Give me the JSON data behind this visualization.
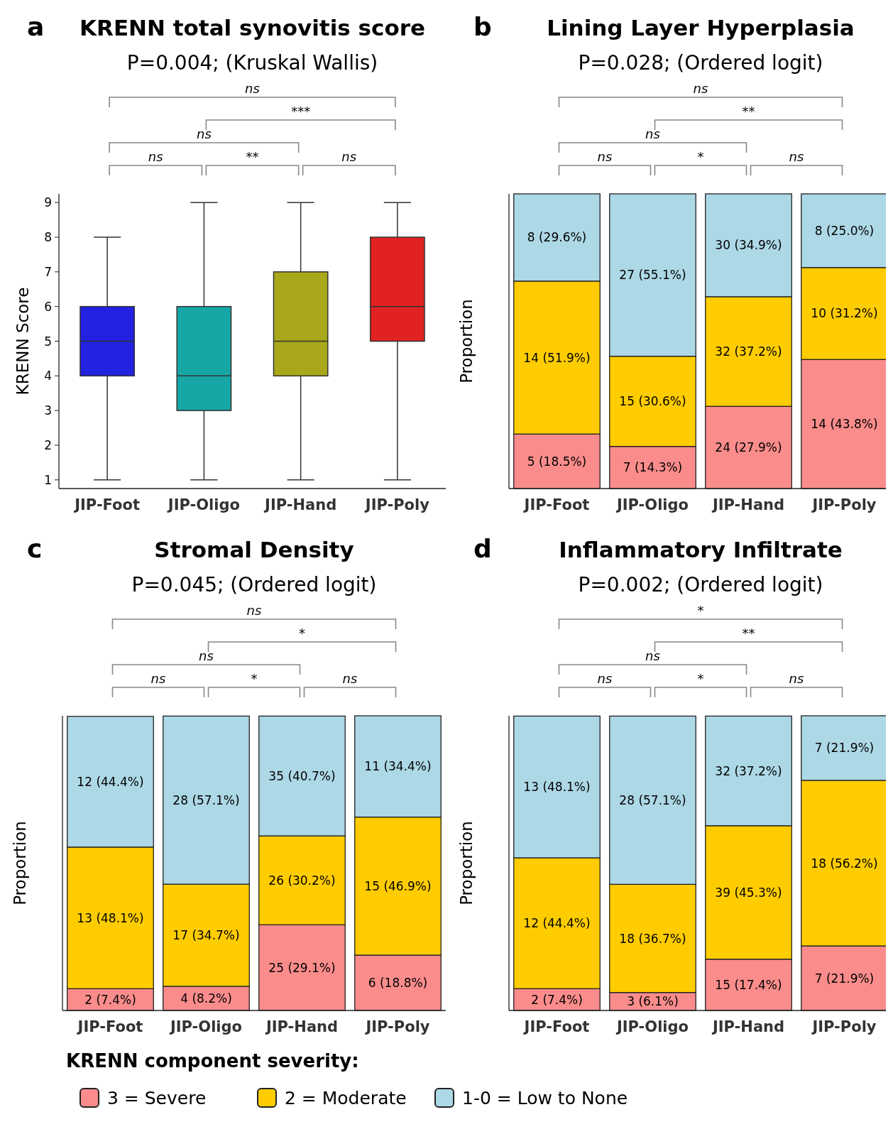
{
  "chart_data": [
    {
      "type": "box",
      "title": "KRENN total synovitis score",
      "subtitle": "P=0.004; (Kruskal Wallis)",
      "ylabel": "KRENN Score",
      "categories": [
        "JIP-Foot",
        "JIP-Oligo",
        "JIP-Hand",
        "JIP-Poly"
      ],
      "colors": [
        "#2222e0",
        "#17a6a6",
        "#a8a81a",
        "#e02222"
      ],
      "boxes": [
        {
          "low": 1,
          "q1": 4,
          "median": 5,
          "q3": 6,
          "high": 8
        },
        {
          "low": 1,
          "q1": 3,
          "median": 4,
          "q3": 6,
          "high": 9
        },
        {
          "low": 1,
          "q1": 4,
          "median": 5,
          "q3": 7,
          "high": 9
        },
        {
          "low": 1,
          "q1": 5,
          "median": 6,
          "q3": 8,
          "high": 9
        }
      ],
      "ylim": [
        0.75,
        9.25
      ],
      "yticks": [
        1,
        2,
        3,
        4,
        5,
        6,
        7,
        8,
        9
      ],
      "annotations": [
        "a",
        "ns",
        "***",
        "ns",
        "ns",
        "**",
        "ns"
      ]
    },
    {
      "type": "bar",
      "stacked": true,
      "title": "Lining Layer Hyperplasia",
      "subtitle": "P=0.028; (Ordered logit)",
      "ylabel": "Proportion",
      "categories": [
        "JIP-Foot",
        "JIP-Oligo",
        "JIP-Hand",
        "JIP-Poly"
      ],
      "ylim": [
        0,
        100
      ],
      "tick_labels": "x",
      "series": [
        {
          "color": "#fa8c8c",
          "values": [
            18.5,
            14.3,
            27.9,
            43.8
          ],
          "value_labels": [
            "5 (18.5%)",
            "7 (14.3%)",
            "24 (27.9%)",
            "14 (43.8%)"
          ]
        },
        {
          "color": "#ffcc00",
          "values": [
            51.9,
            30.6,
            37.2,
            31.2
          ],
          "value_labels": [
            "14 (51.9%)",
            "15 (30.6%)",
            "32 (37.2%)",
            "10 (31.2%)"
          ]
        },
        {
          "color": "#add8e6",
          "values": [
            29.6,
            55.1,
            34.9,
            25.0
          ],
          "value_labels": [
            "8 (29.6%)",
            "27 (55.1%)",
            "30 (34.9%)",
            "8 (25.0%)"
          ]
        }
      ],
      "annotations": [
        "b",
        "ns",
        "**",
        "ns",
        "ns",
        "*",
        "ns"
      ]
    },
    {
      "type": "bar",
      "stacked": true,
      "title": "Stromal Density",
      "subtitle": "P=0.045; (Ordered logit)",
      "ylabel": "Proportion",
      "categories": [
        "JIP-Foot",
        "JIP-Oligo",
        "JIP-Hand",
        "JIP-Poly"
      ],
      "ylim": [
        0,
        100.1
      ],
      "tick_labels": "x",
      "series": [
        {
          "color": "#fa8c8c",
          "values": [
            7.4,
            8.2,
            29.1,
            18.8
          ],
          "value_labels": [
            "2 (7.4%)",
            "4 (8.2%)",
            "25 (29.1%)",
            "6 (18.8%)"
          ]
        },
        {
          "color": "#ffcc00",
          "values": [
            48.1,
            34.7,
            30.2,
            46.9
          ],
          "value_labels": [
            "13 (48.1%)",
            "17 (34.7%)",
            "26 (30.2%)",
            "15 (46.9%)"
          ]
        },
        {
          "color": "#add8e6",
          "values": [
            44.4,
            57.1,
            40.7,
            34.4
          ],
          "value_labels": [
            "12 (44.4%)",
            "28 (57.1%)",
            "35 (40.7%)",
            "11 (34.4%)"
          ]
        }
      ],
      "annotations": [
        "c",
        "ns",
        "*",
        "ns",
        "ns",
        "*",
        "ns"
      ]
    },
    {
      "type": "bar",
      "stacked": true,
      "title": "Inflammatory Infiltrate",
      "subtitle": "P=0.002; (Ordered logit)",
      "ylabel": "Proportion",
      "categories": [
        "JIP-Foot",
        "JIP-Oligo",
        "JIP-Hand",
        "JIP-Poly"
      ],
      "ylim": [
        0,
        100
      ],
      "tick_labels": "x",
      "legend": "bottom",
      "legend_title": "KRENN component severity:",
      "series": [
        {
          "name": "3 = Severe",
          "color": "#fa8c8c",
          "values": [
            7.4,
            6.1,
            17.4,
            21.9
          ],
          "value_labels": [
            "2 (7.4%)",
            "3 (6.1%)",
            "15 (17.4%)",
            "7 (21.9%)"
          ]
        },
        {
          "name": "2 = Moderate",
          "color": "#ffcc00",
          "values": [
            44.4,
            36.7,
            45.3,
            56.2
          ],
          "value_labels": [
            "12 (44.4%)",
            "18 (36.7%)",
            "39 (45.3%)",
            "18 (56.2%)"
          ]
        },
        {
          "name": "1-0 = Low to None",
          "color": "#add8e6",
          "values": [
            48.1,
            57.1,
            37.2,
            21.9
          ],
          "value_labels": [
            "13 (48.1%)",
            "28 (57.1%)",
            "32 (37.2%)",
            "7 (21.9%)"
          ]
        }
      ],
      "annotations": [
        "d",
        "*",
        "**",
        "ns",
        "ns",
        "*",
        "ns"
      ]
    }
  ]
}
